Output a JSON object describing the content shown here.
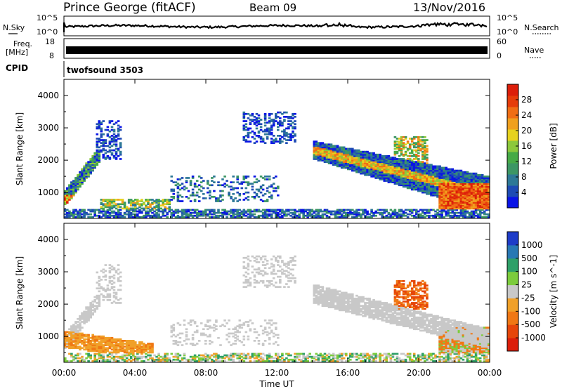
{
  "header": {
    "station": "Prince George (fitACF)",
    "beam": "Beam 09",
    "date": "13/Nov/2016"
  },
  "strips": {
    "nsky_label": "N.Sky",
    "nsearch_label": "N.Search",
    "noise_ticks": [
      "10^5",
      "10^0"
    ],
    "freq_label": "Freq.",
    "freq_unit": "[MHz]",
    "freq_ticks": [
      "18",
      "8"
    ],
    "nave_label": "Nave",
    "nave_ticks": [
      "60",
      "0"
    ],
    "cpid_label": "CPID",
    "cpid_value": "twofsound 3503"
  },
  "chart_data": [
    {
      "type": "heatmap",
      "panel": "power",
      "ylabel": "Slant Range [km]",
      "xlabel": "Time UT",
      "xlim": [
        "00:00",
        "24:00"
      ],
      "ylim": [
        200,
        4500
      ],
      "x_ticks": [
        "00:00",
        "04:00",
        "08:00",
        "12:00",
        "16:00",
        "20:00",
        "00:00"
      ],
      "y_ticks": [
        1000,
        2000,
        3000,
        4000
      ],
      "colorbar": {
        "label": "Power [dB]",
        "ticks": [
          4,
          8,
          12,
          16,
          20,
          24,
          28
        ],
        "colors": [
          "#0a14e6",
          "#1e4bb4",
          "#2d7896",
          "#3c9664",
          "#46aa46",
          "#8cc83c",
          "#e6d21e",
          "#f0a01e",
          "#f06e14",
          "#e63c0a",
          "#dc1e0a"
        ]
      },
      "features": [
        {
          "name": "near-range band",
          "t_start": 0.0,
          "t_end": 21.0,
          "range_km": [
            300,
            500
          ]
        },
        {
          "name": "early ionospheric echo",
          "t_start": 0.0,
          "t_end": 2.0,
          "range_km": [
            600,
            2300
          ]
        },
        {
          "name": "morning sporadic echo",
          "t_start": 1.8,
          "t_end": 3.2,
          "range_km": [
            2000,
            3200
          ]
        },
        {
          "name": "evening ascending echo",
          "t_start": 14.0,
          "t_end": 24.0,
          "range_km": [
            800,
            2700
          ]
        },
        {
          "name": "strong evening echo",
          "t_start": 21.0,
          "t_end": 24.0,
          "range_km": [
            400,
            1300
          ]
        }
      ]
    },
    {
      "type": "heatmap",
      "panel": "velocity",
      "ylabel": "Slant Range [km]",
      "xlabel": "Time UT",
      "xlim": [
        "00:00",
        "24:00"
      ],
      "ylim": [
        200,
        4500
      ],
      "x_ticks": [
        "00:00",
        "04:00",
        "08:00",
        "12:00",
        "16:00",
        "20:00",
        "00:00"
      ],
      "y_ticks": [
        1000,
        2000,
        3000,
        4000
      ],
      "colorbar": {
        "label": "Velocity [m s^-1]",
        "ticks": [
          1000,
          500,
          100,
          25,
          -25,
          -100,
          -500,
          -1000
        ],
        "colors": [
          "#1e3cc8",
          "#2878b4",
          "#2ea068",
          "#7ccc3c",
          "#c8c8c8",
          "#f0a028",
          "#f07814",
          "#e6460a",
          "#dc1e0a"
        ]
      },
      "features": [
        {
          "name": "ground scatter (gray)",
          "t_start": 0.0,
          "t_end": 24.0,
          "range_km": [
            300,
            3500
          ]
        },
        {
          "name": "receding flow (orange)",
          "t_start": 0.0,
          "t_end": 5.0,
          "range_km": [
            300,
            1200
          ]
        },
        {
          "name": "evening receding patch",
          "t_start": 18.5,
          "t_end": 20.5,
          "range_km": [
            1800,
            2700
          ]
        }
      ]
    }
  ]
}
